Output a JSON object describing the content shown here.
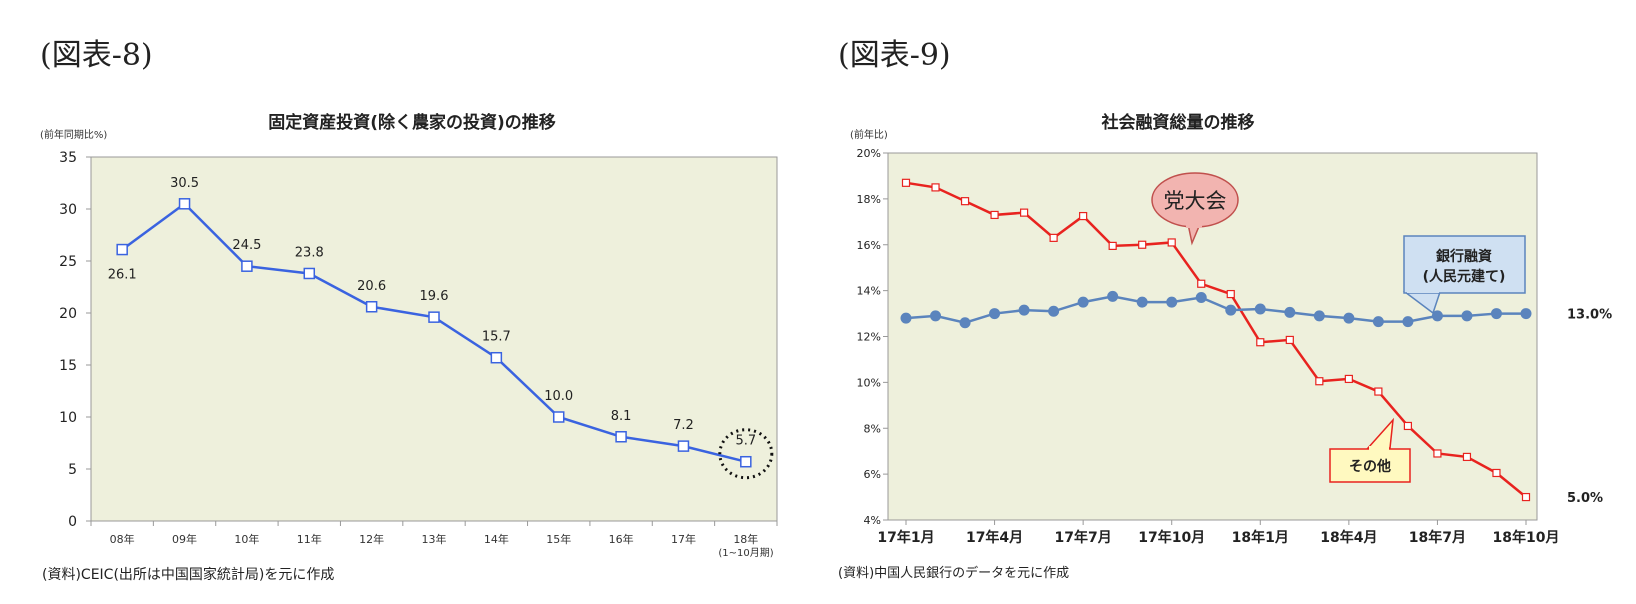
{
  "figures": [
    {
      "label": "(図表-8)"
    },
    {
      "label": "(図表-9)"
    }
  ],
  "chart_data": [
    {
      "type": "line",
      "title": "固定資産投資(除く農家の投資)の推移",
      "unit_label": "(前年同期比%)",
      "categories": [
        "08年",
        "09年",
        "10年",
        "11年",
        "12年",
        "13年",
        "14年",
        "15年",
        "16年",
        "17年",
        "18年"
      ],
      "category_note": "(1~10月期)",
      "values": [
        26.1,
        30.5,
        24.5,
        23.8,
        20.6,
        19.6,
        15.7,
        10.0,
        8.1,
        7.2,
        5.7
      ],
      "data_labels": [
        "26.1",
        "30.5",
        "24.5",
        "23.8",
        "20.6",
        "19.6",
        "15.7",
        "10.0",
        "8.1",
        "7.2",
        "5.7"
      ],
      "ylim": [
        0,
        35
      ],
      "yticks": [
        "0",
        "5",
        "10",
        "15",
        "20",
        "25",
        "30",
        "35"
      ],
      "highlight_last": true,
      "grid": false,
      "colors": {
        "line": "#3a63e0",
        "plot_bg": "#eef0dc",
        "axis": "#999999"
      },
      "source": "(資料)CEIC(出所は中国国家統計局)を元に作成"
    },
    {
      "type": "line",
      "title": "社会融資総量の推移",
      "unit_label": "(前年比)",
      "xticks": [
        "17年1月",
        "17年4月",
        "17年7月",
        "17年10月",
        "18年1月",
        "18年4月",
        "18年7月",
        "18年10月"
      ],
      "ylim": [
        4,
        20
      ],
      "yticks": [
        "4%",
        "6%",
        "8%",
        "10%",
        "12%",
        "14%",
        "16%",
        "18%",
        "20%"
      ],
      "series": [
        {
          "name": "その他",
          "color": "#e8231f",
          "values": [
            18.7,
            18.5,
            17.9,
            17.3,
            17.4,
            16.3,
            17.25,
            15.95,
            16.0,
            16.1,
            14.3,
            13.85,
            11.75,
            11.85,
            10.05,
            10.15,
            9.6,
            8.1,
            6.9,
            6.75,
            6.05,
            5.0
          ],
          "end_label": "5.0%"
        },
        {
          "name": "銀行融資\n(人民元建て)",
          "color": "#5b84bd",
          "values": [
            12.8,
            12.9,
            12.6,
            13.0,
            13.15,
            13.1,
            13.5,
            13.75,
            13.5,
            13.5,
            13.7,
            13.15,
            13.2,
            13.05,
            12.9,
            12.8,
            12.65,
            12.65,
            12.9,
            12.9,
            13.0,
            13.0
          ],
          "end_label": "13.0%"
        }
      ],
      "callouts": {
        "event": "党大会",
        "bank": "銀行融資\n(人民元建て)",
        "other": "その他"
      },
      "colors": {
        "plot_bg": "#eef0dc",
        "event_bg": "#f2b4b0",
        "bank_bg": "#cfe0f2",
        "other_bg": "#fff9c0"
      },
      "source": "(資料)中国人民銀行のデータを元に作成"
    }
  ]
}
